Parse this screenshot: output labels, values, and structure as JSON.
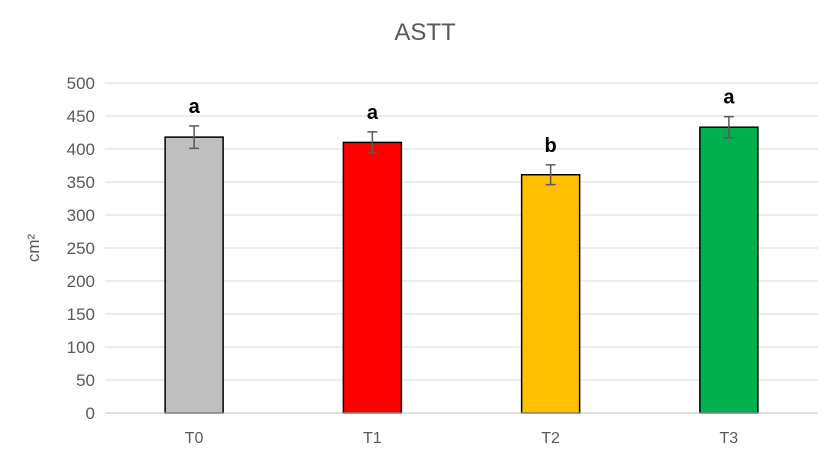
{
  "chart_data": {
    "type": "bar",
    "title": "ASTT",
    "ylabel": "cm²",
    "xlabel": "",
    "ylim": [
      0,
      500
    ],
    "ytick_step": 50,
    "grid": true,
    "categories": [
      "T0",
      "T1",
      "T2",
      "T3"
    ],
    "values": [
      418,
      410,
      361,
      433
    ],
    "errors": [
      17,
      16,
      15,
      16
    ],
    "colors": [
      "#bfbfbf",
      "#ff0000",
      "#ffc000",
      "#00b050"
    ],
    "significance_labels": [
      "a",
      "a",
      "b",
      "a"
    ]
  }
}
